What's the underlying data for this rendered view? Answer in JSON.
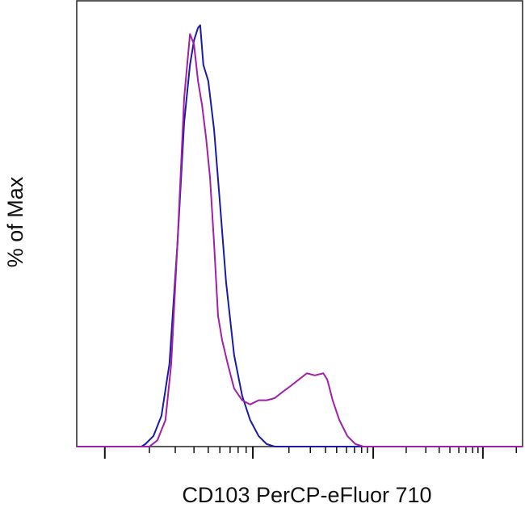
{
  "chart_data": {
    "type": "line",
    "x_label": "CD103 PerCP-eFluor 710",
    "y_label": "% of Max",
    "xlim": [
      0,
      1000
    ],
    "ylim": [
      0,
      106
    ],
    "xticks": [
      63,
      395,
      665,
      911
    ],
    "xminorticks": [
      163,
      221,
      263,
      295,
      321,
      344,
      362,
      380,
      476,
      524,
      558,
      583,
      605,
      623,
      639,
      652,
      739,
      783,
      813,
      837,
      857,
      873,
      888,
      900,
      986
    ],
    "series": [
      {
        "color": "#1a1aa6",
        "x": [
          0,
          145,
          154,
          172,
          190,
          208,
          226,
          241,
          254,
          263,
          272,
          277,
          284,
          295,
          308,
          321,
          335,
          353,
          371,
          389,
          408,
          426,
          444,
          1000
        ],
        "values": [
          0,
          0,
          0.6,
          2.5,
          7.3,
          19.7,
          48.3,
          77.0,
          90.6,
          96.4,
          99.4,
          100,
          90.6,
          86.8,
          75.3,
          58.1,
          39.0,
          21.7,
          12.1,
          6.3,
          2.5,
          0.6,
          0,
          0
        ]
      },
      {
        "color": "#a020a8",
        "x": [
          0,
          163,
          181,
          199,
          212,
          226,
          241,
          254,
          263,
          272,
          281,
          290,
          299,
          308,
          317,
          326,
          339,
          353,
          371,
          389,
          408,
          426,
          444,
          462,
          480,
          498,
          516,
          534,
          553,
          562,
          574,
          589,
          607,
          625,
          643,
          1000
        ],
        "values": [
          0,
          0,
          1.5,
          6.3,
          19.7,
          48.3,
          82.8,
          97.9,
          95.5,
          86.8,
          81.1,
          73.4,
          63.8,
          48.3,
          31.0,
          25.3,
          19.5,
          13.8,
          11.0,
          10.0,
          11.0,
          11.0,
          11.5,
          13.0,
          14.4,
          15.9,
          17.4,
          16.9,
          17.4,
          15.9,
          11.0,
          6.3,
          2.5,
          0.6,
          0,
          0
        ]
      }
    ]
  }
}
